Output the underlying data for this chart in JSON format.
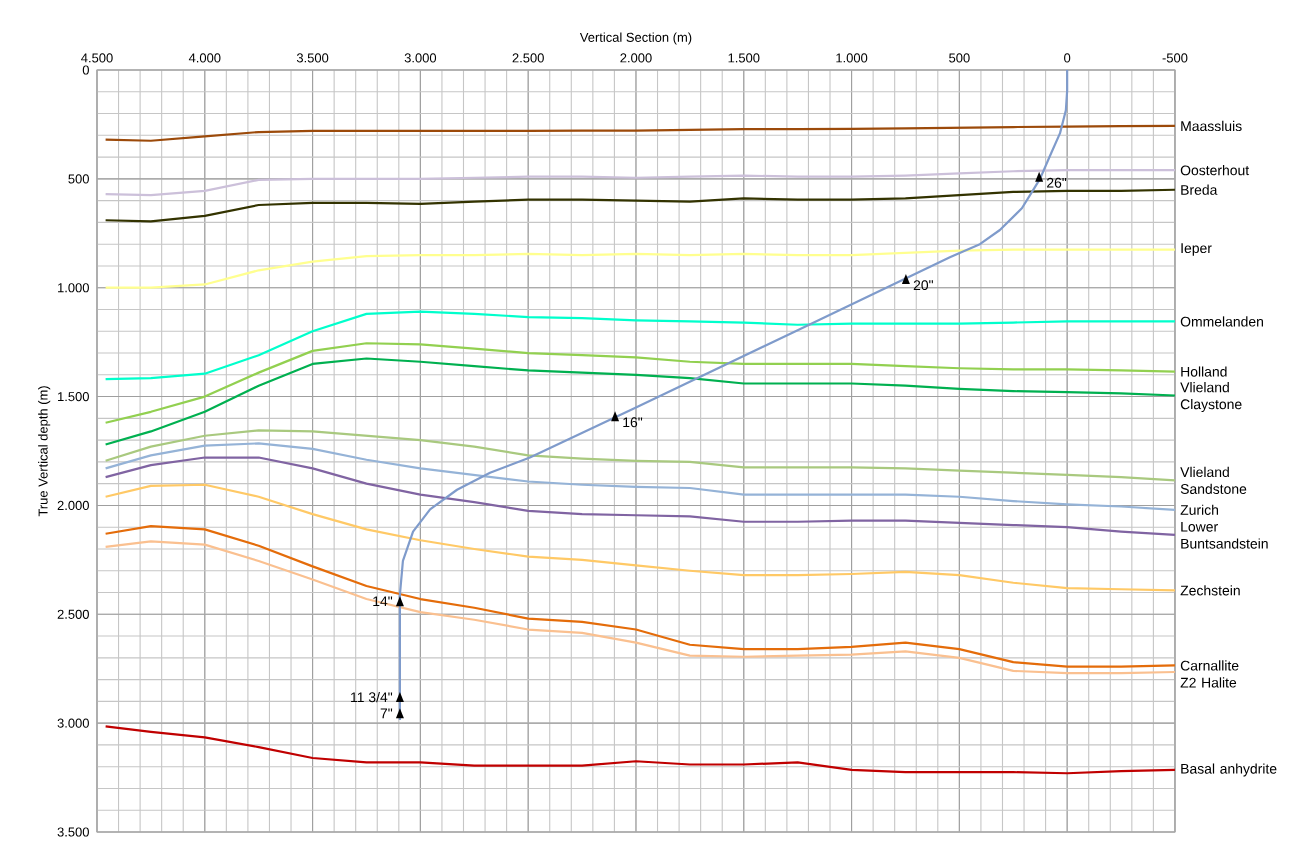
{
  "chart_data": {
    "type": "line",
    "xlabel": "Vertical Section (m)",
    "ylabel": "True Vertical depth (m)",
    "xlim": [
      4500,
      -500
    ],
    "ylim": [
      3500,
      0
    ],
    "xticks": [
      {
        "value": 4500,
        "label": "4.500"
      },
      {
        "value": 4000,
        "label": "4.000"
      },
      {
        "value": 3500,
        "label": "3.500"
      },
      {
        "value": 3000,
        "label": "3.000"
      },
      {
        "value": 2500,
        "label": "2.500"
      },
      {
        "value": 2000,
        "label": "2.000"
      },
      {
        "value": 1500,
        "label": "1.500"
      },
      {
        "value": 1000,
        "label": "1.000"
      },
      500,
      0,
      -500
    ],
    "yticks": [
      0,
      500,
      {
        "value": 1000,
        "label": "1.000"
      },
      {
        "value": 1500,
        "label": "1.500"
      },
      {
        "value": 2000,
        "label": "2.000"
      },
      {
        "value": 2500,
        "label": "2.500"
      },
      {
        "value": 3000,
        "label": "3.000"
      },
      {
        "value": 3500,
        "label": "3.500"
      }
    ],
    "grid": true,
    "legend": false,
    "marker": "none",
    "line_style": "solid",
    "x": [
      4460,
      4250,
      4000,
      3750,
      3500,
      3250,
      3000,
      2750,
      2500,
      2250,
      2000,
      1750,
      1500,
      1250,
      1000,
      750,
      500,
      250,
      0,
      -250,
      -500
    ],
    "series": [
      {
        "name": "Maassluis",
        "color": "#9c4a0a",
        "values": [
          320,
          325,
          305,
          285,
          280,
          280,
          280,
          280,
          280,
          278,
          278,
          275,
          272,
          272,
          270,
          268,
          265,
          262,
          260,
          258,
          257
        ]
      },
      {
        "name": "Oosterhout",
        "color": "#ccc0da",
        "values": [
          570,
          575,
          555,
          505,
          500,
          500,
          500,
          495,
          490,
          490,
          495,
          490,
          485,
          490,
          490,
          485,
          475,
          465,
          460,
          460,
          460
        ]
      },
      {
        "name": "Breda",
        "color": "#333300",
        "values": [
          690,
          695,
          670,
          620,
          610,
          610,
          615,
          605,
          595,
          595,
          600,
          605,
          590,
          595,
          595,
          590,
          575,
          560,
          555,
          555,
          550
        ]
      },
      {
        "name": "Ieper",
        "color": "#ffff8f",
        "values": [
          1000,
          1000,
          985,
          920,
          880,
          855,
          850,
          850,
          845,
          850,
          845,
          850,
          845,
          850,
          850,
          840,
          830,
          825,
          825,
          825,
          825
        ]
      },
      {
        "name": "Ommelanden",
        "color": "#00ffcc",
        "values": [
          1420,
          1415,
          1395,
          1310,
          1200,
          1120,
          1110,
          1120,
          1135,
          1140,
          1150,
          1155,
          1160,
          1170,
          1165,
          1165,
          1165,
          1160,
          1155,
          1155,
          1155
        ]
      },
      {
        "name": "Holland",
        "color": "#92d050",
        "values": [
          1620,
          1570,
          1500,
          1390,
          1290,
          1255,
          1260,
          1280,
          1300,
          1310,
          1320,
          1340,
          1350,
          1350,
          1350,
          1360,
          1370,
          1375,
          1375,
          1380,
          1385
        ]
      },
      {
        "name": "Vlieland Claystone",
        "color": "#00b050",
        "values": [
          1720,
          1660,
          1570,
          1450,
          1350,
          1325,
          1340,
          1360,
          1380,
          1390,
          1400,
          1415,
          1440,
          1440,
          1440,
          1450,
          1465,
          1475,
          1480,
          1485,
          1495
        ]
      },
      {
        "name": "Vlieland Sandstone",
        "color": "#a9c97f",
        "values": [
          1795,
          1730,
          1680,
          1655,
          1660,
          1680,
          1700,
          1730,
          1770,
          1785,
          1795,
          1800,
          1825,
          1825,
          1825,
          1830,
          1840,
          1850,
          1860,
          1870,
          1885
        ]
      },
      {
        "name": "Zurich",
        "color": "#95b3d7",
        "values": [
          1830,
          1770,
          1725,
          1715,
          1740,
          1790,
          1830,
          1860,
          1890,
          1905,
          1915,
          1920,
          1950,
          1950,
          1950,
          1950,
          1960,
          1980,
          1995,
          2005,
          2020
        ]
      },
      {
        "name": "Lower Buntsandstein",
        "color": "#8064a2",
        "values": [
          1870,
          1815,
          1780,
          1780,
          1830,
          1900,
          1950,
          1985,
          2025,
          2040,
          2045,
          2050,
          2075,
          2075,
          2070,
          2070,
          2080,
          2090,
          2100,
          2120,
          2135
        ]
      },
      {
        "name": "Zechstein",
        "color": "#ffc966",
        "values": [
          1960,
          1910,
          1905,
          1960,
          2040,
          2110,
          2160,
          2200,
          2235,
          2250,
          2275,
          2300,
          2320,
          2320,
          2315,
          2305,
          2320,
          2355,
          2380,
          2385,
          2390
        ]
      },
      {
        "name": "Carnallite",
        "color": "#e46c0a",
        "values": [
          2130,
          2095,
          2110,
          2185,
          2280,
          2370,
          2430,
          2470,
          2520,
          2535,
          2570,
          2640,
          2660,
          2660,
          2650,
          2630,
          2660,
          2720,
          2740,
          2740,
          2735
        ]
      },
      {
        "name": "Z2 Halite",
        "color": "#fac090",
        "values": [
          2190,
          2165,
          2180,
          2255,
          2340,
          2430,
          2490,
          2525,
          2570,
          2585,
          2630,
          2690,
          2695,
          2690,
          2685,
          2670,
          2700,
          2760,
          2770,
          2770,
          2765
        ]
      },
      {
        "name": "Basal anhydrite",
        "color": "#c00000",
        "values": [
          3015,
          3040,
          3065,
          3110,
          3160,
          3180,
          3180,
          3195,
          3195,
          3195,
          3175,
          3190,
          3190,
          3180,
          3215,
          3225,
          3225,
          3225,
          3230,
          3220,
          3215
        ]
      },
      {
        "color": "#7f9bcb",
        "x": [
          0,
          0,
          6,
          33,
          80,
          126,
          163,
          210,
          312,
          405,
          544,
          1250,
          2000,
          2492,
          2677,
          2830,
          2955,
          3034,
          3081,
          3095,
          3095
        ],
        "values": [
          0,
          95,
          185,
          290,
          395,
          500,
          560,
          635,
          735,
          800,
          860,
          1195,
          1550,
          1780,
          1850,
          1928,
          2018,
          2120,
          2255,
          2410,
          2985
        ]
      }
    ],
    "annotations": [
      {
        "text": "26\"",
        "x": 130,
        "y": 490
      },
      {
        "text": "20\"",
        "x": 748,
        "y": 960
      },
      {
        "text": "16\"",
        "x": 2097,
        "y": 1590
      },
      {
        "text": "14\"",
        "x": 3095,
        "y": 2440
      },
      {
        "text": "11 3/4\"",
        "x": 3095,
        "y": 2880
      },
      {
        "text": "7\"",
        "x": 3095,
        "y": 2955
      }
    ]
  }
}
